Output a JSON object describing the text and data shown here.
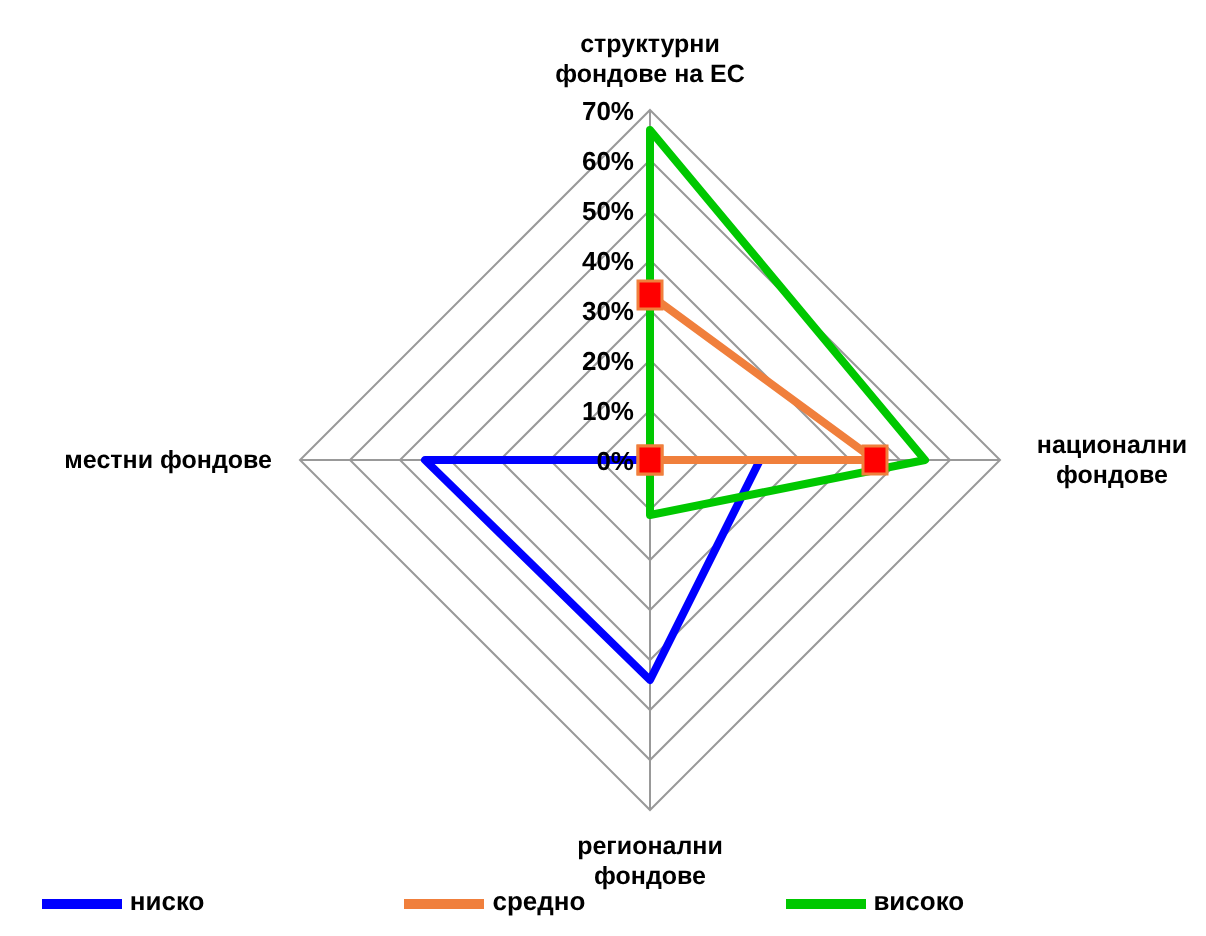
{
  "chart_data": {
    "type": "radar",
    "categories": [
      "структурни фондове на ЕС",
      "национални фондове",
      "регионални фондове",
      "местни фондове"
    ],
    "series": [
      {
        "name": "ниско",
        "color": "#0000ff",
        "values": [
          0,
          22,
          44,
          45
        ]
      },
      {
        "name": "средно",
        "color": "#f07f3c",
        "values": [
          33,
          45,
          0,
          0
        ],
        "marker": "square"
      },
      {
        "name": "високо",
        "color": "#00c800",
        "values": [
          66,
          55,
          11,
          0
        ]
      }
    ],
    "ylim": [
      0,
      70
    ],
    "yticks": [
      {
        "value": 0,
        "label": "0%"
      },
      {
        "value": 10,
        "label": "10%"
      },
      {
        "value": 20,
        "label": "20%"
      },
      {
        "value": 30,
        "label": "30%"
      },
      {
        "value": 40,
        "label": "40%"
      },
      {
        "value": 50,
        "label": "50%"
      },
      {
        "value": 60,
        "label": "60%"
      },
      {
        "value": 70,
        "label": "70%"
      }
    ],
    "grid": true,
    "legend": "bottom"
  }
}
